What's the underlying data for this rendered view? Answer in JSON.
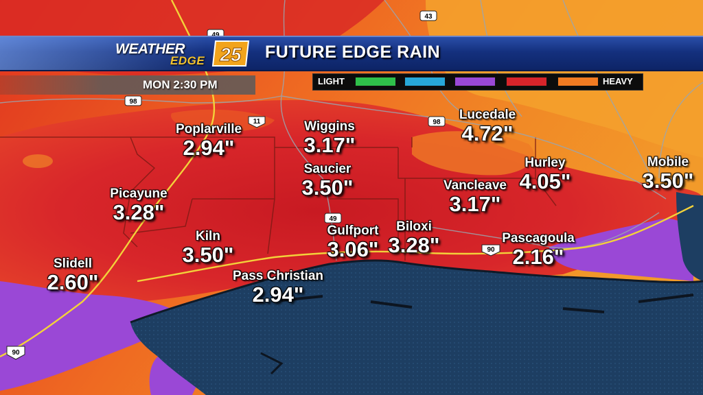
{
  "header": {
    "logo_word": "WEATHER",
    "logo_sub": "EDGE",
    "logo_number": "25",
    "title": "FUTURE EDGE RAIN"
  },
  "timestamp": "MON 2:30 PM",
  "legend": {
    "low_label": "LIGHT",
    "high_label": "HEAVY",
    "swatch_colors": [
      "#2fc04a",
      "#27a7d8",
      "#9a48d6",
      "#d8242a",
      "#f27b22"
    ]
  },
  "highways": {
    "hwy_43": "43",
    "hwy_49_north": "49",
    "hwy_98_west": "98",
    "hwy_11": "11",
    "hwy_98_east": "98",
    "hwy_49_south": "49",
    "hwy_90_east": "90",
    "hwy_90_west": "90"
  },
  "cities": [
    {
      "name": "Poplarville",
      "amount": "2.94\""
    },
    {
      "name": "Wiggins",
      "amount": "3.17\""
    },
    {
      "name": "Lucedale",
      "amount": "4.72\""
    },
    {
      "name": "Saucier",
      "amount": "3.50\""
    },
    {
      "name": "Hurley",
      "amount": "4.05\""
    },
    {
      "name": "Mobile",
      "amount": "3.50\""
    },
    {
      "name": "Picayune",
      "amount": "3.28\""
    },
    {
      "name": "Vancleave",
      "amount": "3.17\""
    },
    {
      "name": "Gulfport",
      "amount": "3.06\""
    },
    {
      "name": "Biloxi",
      "amount": "3.28\""
    },
    {
      "name": "Kiln",
      "amount": "3.50\""
    },
    {
      "name": "Pascagoula",
      "amount": "2.16\""
    },
    {
      "name": "Slidell",
      "amount": "2.60\""
    },
    {
      "name": "Pass Christian",
      "amount": "2.94\""
    }
  ],
  "colors": {
    "water": "#1b3a5c",
    "heavy_rain": "#d8242a",
    "moderate_rain": "#9a48d6",
    "header_blue": "#14307e",
    "logo_yellow": "#f2c230"
  }
}
